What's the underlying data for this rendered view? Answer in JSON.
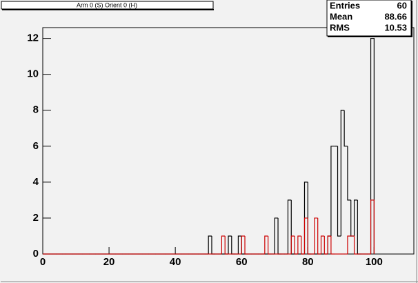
{
  "chart_data": {
    "type": "histogram",
    "title": "Arm 0 (S) Orient 0 (H)",
    "bins": [
      0,
      1,
      2,
      3,
      4,
      5,
      6,
      7,
      8,
      9,
      10,
      11,
      12,
      13,
      14,
      15,
      16,
      17,
      18,
      19,
      20,
      21,
      22,
      23,
      24,
      25,
      26,
      27,
      28,
      29,
      30,
      31,
      32,
      33,
      34,
      35,
      36,
      37,
      38,
      39,
      40,
      41,
      42,
      43,
      44,
      45,
      46,
      47,
      48,
      49,
      50,
      51,
      52,
      53,
      54,
      55,
      56,
      57,
      58,
      59,
      60,
      61,
      62,
      63,
      64,
      65,
      66,
      67,
      68,
      69,
      70,
      71,
      72,
      73,
      74,
      75,
      76,
      77,
      78,
      79,
      80,
      81,
      82,
      83,
      84,
      85,
      86,
      87,
      88,
      89,
      90,
      91,
      92,
      93,
      94,
      95,
      96,
      97,
      98,
      99,
      100
    ],
    "series": [
      {
        "color": "#000000",
        "values": [
          0,
          0,
          0,
          0,
          0,
          0,
          0,
          0,
          0,
          0,
          0,
          0,
          0,
          0,
          0,
          0,
          0,
          0,
          0,
          0,
          0,
          0,
          0,
          0,
          0,
          0,
          0,
          0,
          0,
          0,
          0,
          0,
          0,
          0,
          0,
          0,
          0,
          0,
          0,
          0,
          0,
          0,
          0,
          0,
          0,
          0,
          0,
          0,
          0,
          0,
          1,
          0,
          0,
          0,
          0,
          0,
          1,
          0,
          0,
          1,
          0,
          0,
          0,
          0,
          0,
          0,
          0,
          0,
          0,
          0,
          2,
          0,
          0,
          0,
          3,
          0,
          0,
          0,
          0,
          4,
          0,
          0,
          0,
          0,
          0,
          0,
          1,
          6,
          6,
          1,
          8,
          6,
          3,
          1,
          3,
          0,
          0,
          0,
          0,
          12
        ]
      },
      {
        "color": "#cc0000",
        "values": [
          0,
          0,
          0,
          0,
          0,
          0,
          0,
          0,
          0,
          0,
          0,
          0,
          0,
          0,
          0,
          0,
          0,
          0,
          0,
          0,
          0,
          0,
          0,
          0,
          0,
          0,
          0,
          0,
          0,
          0,
          0,
          0,
          0,
          0,
          0,
          0,
          0,
          0,
          0,
          0,
          0,
          0,
          0,
          0,
          0,
          0,
          0,
          0,
          0,
          0,
          0,
          0,
          0,
          0,
          1,
          0,
          0,
          0,
          0,
          0,
          1,
          0,
          0,
          0,
          0,
          0,
          0,
          1,
          0,
          0,
          0,
          0,
          0,
          0,
          0,
          1,
          0,
          1,
          0,
          2,
          0,
          0,
          2,
          0,
          1,
          0,
          1,
          0,
          0,
          0,
          0,
          0,
          1,
          1,
          0,
          0,
          0,
          0,
          0,
          3
        ]
      }
    ],
    "xlim": [
      0,
      112
    ],
    "ylim": [
      0,
      12.6
    ],
    "xticks": [
      0,
      20,
      40,
      60,
      80,
      100
    ],
    "yticks": [
      0,
      2,
      4,
      6,
      8,
      10,
      12
    ],
    "stats": [
      {
        "label": "Entries",
        "value": "60"
      },
      {
        "label": "Mean",
        "value": "88.66"
      },
      {
        "label": "RMS",
        "value": "10.53"
      }
    ]
  }
}
